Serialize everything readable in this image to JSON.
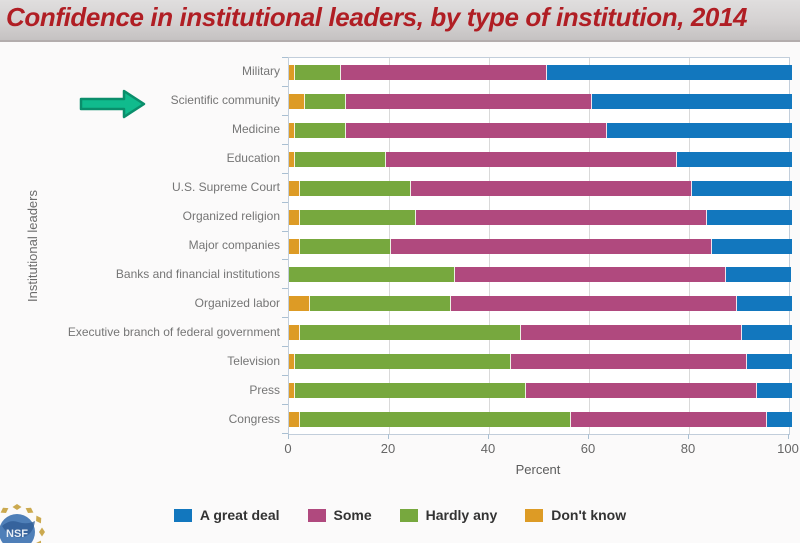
{
  "header": {
    "title": "Confidence in institutional leaders, by type of institution, 2014"
  },
  "chart_data": {
    "type": "bar",
    "stacked": true,
    "orientation": "horizontal",
    "title": "Confidence in institutional leaders, by type of institution, 2014",
    "xlabel": "Percent",
    "ylabel": "Institutional leaders",
    "xlim": [
      0,
      100
    ],
    "x_ticks": [
      0,
      20,
      40,
      60,
      80,
      100
    ],
    "grid": true,
    "legend_position": "bottom",
    "legend_order": [
      "A great deal",
      "Some",
      "Hardly any",
      "Don't know"
    ],
    "categories": [
      "Military",
      "Scientific community",
      "Medicine",
      "Education",
      "U.S. Supreme Court",
      "Organized religion",
      "Major companies",
      "Banks and financial institutions",
      "Organized labor",
      "Executive branch of federal government",
      "Television",
      "Press",
      "Congress"
    ],
    "series": [
      {
        "name": "Don't know",
        "color": "#DD9B25",
        "values": [
          1,
          3,
          1,
          1,
          2,
          2,
          2,
          0,
          4,
          2,
          1,
          1,
          2
        ]
      },
      {
        "name": "Hardly any",
        "color": "#77A83E",
        "values": [
          9,
          8,
          10,
          18,
          22,
          23,
          18,
          33,
          28,
          44,
          43,
          46,
          54
        ]
      },
      {
        "name": "Some",
        "color": "#B0497E",
        "values": [
          41,
          49,
          52,
          58,
          56,
          58,
          64,
          54,
          57,
          44,
          47,
          46,
          39
        ]
      },
      {
        "name": "A great deal",
        "color": "#1277BE",
        "values": [
          49,
          40,
          37,
          23,
          20,
          17,
          16,
          13,
          11,
          10,
          9,
          7,
          5
        ]
      }
    ],
    "annotation": {
      "type": "arrow",
      "points_to": "Scientific community",
      "color": "#10BB8D"
    }
  },
  "colors": {
    "title_text": "#B01E24",
    "arrow_fill": "#10BB8D",
    "arrow_border": "#0A8E6B"
  },
  "logo": {
    "name": "NSF logo (partial, bottom-left corner)"
  }
}
